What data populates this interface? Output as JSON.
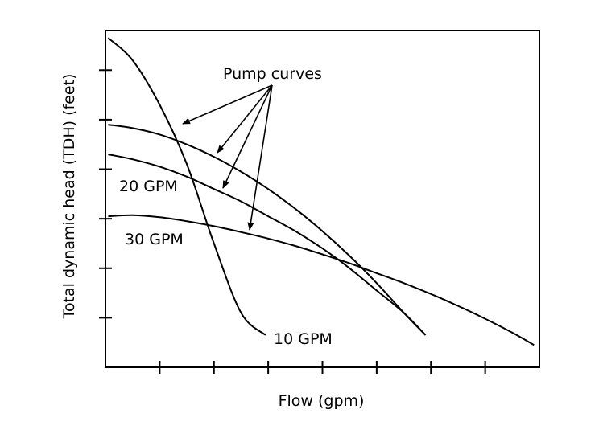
{
  "chart_data": {
    "type": "line",
    "title": "",
    "xlabel": "Flow (gpm)",
    "ylabel": "Total dynamic head (TDH) (feet)",
    "xlim": [
      0,
      8
    ],
    "ylim": [
      0,
      6.8
    ],
    "x_ticks": [
      1,
      2,
      3,
      4,
      5,
      6,
      7
    ],
    "y_ticks": [
      1,
      2,
      3,
      4,
      5,
      6
    ],
    "grid": false,
    "legend": "none",
    "annotation": "Pump curves",
    "series": [
      {
        "name": "10 GPM",
        "x": [
          0.05,
          0.5,
          1.0,
          1.5,
          2.0,
          2.5,
          2.95
        ],
        "y": [
          6.65,
          6.2,
          5.3,
          4.1,
          2.5,
          1.1,
          0.65
        ]
      },
      {
        "name": "",
        "x": [
          0.05,
          0.5,
          1.0,
          1.5,
          2.0,
          2.5,
          3.0,
          3.5,
          4.0,
          4.5,
          5.0,
          5.5,
          5.9
        ],
        "y": [
          4.9,
          4.83,
          4.7,
          4.5,
          4.25,
          3.95,
          3.6,
          3.2,
          2.75,
          2.25,
          1.7,
          1.1,
          0.65
        ]
      },
      {
        "name": "20 GPM",
        "x": [
          0.05,
          0.5,
          1.0,
          1.5,
          2.0,
          2.5,
          3.0,
          3.5,
          4.0,
          4.5,
          5.0,
          5.5,
          5.9
        ],
        "y": [
          4.3,
          4.2,
          4.05,
          3.85,
          3.6,
          3.35,
          3.05,
          2.75,
          2.4,
          2.0,
          1.55,
          1.1,
          0.65
        ]
      },
      {
        "name": "30 GPM",
        "x": [
          0.05,
          0.5,
          1.0,
          1.5,
          2.0,
          2.5,
          3.0,
          3.5,
          4.0,
          4.5,
          5.0,
          5.5,
          6.0,
          6.5,
          7.0,
          7.5,
          7.9
        ],
        "y": [
          3.05,
          3.07,
          3.03,
          2.95,
          2.85,
          2.73,
          2.6,
          2.45,
          2.28,
          2.1,
          1.9,
          1.7,
          1.48,
          1.24,
          0.98,
          0.7,
          0.45
        ]
      }
    ],
    "curve_labels": [
      "10 GPM",
      "20 GPM",
      "30 GPM"
    ]
  }
}
